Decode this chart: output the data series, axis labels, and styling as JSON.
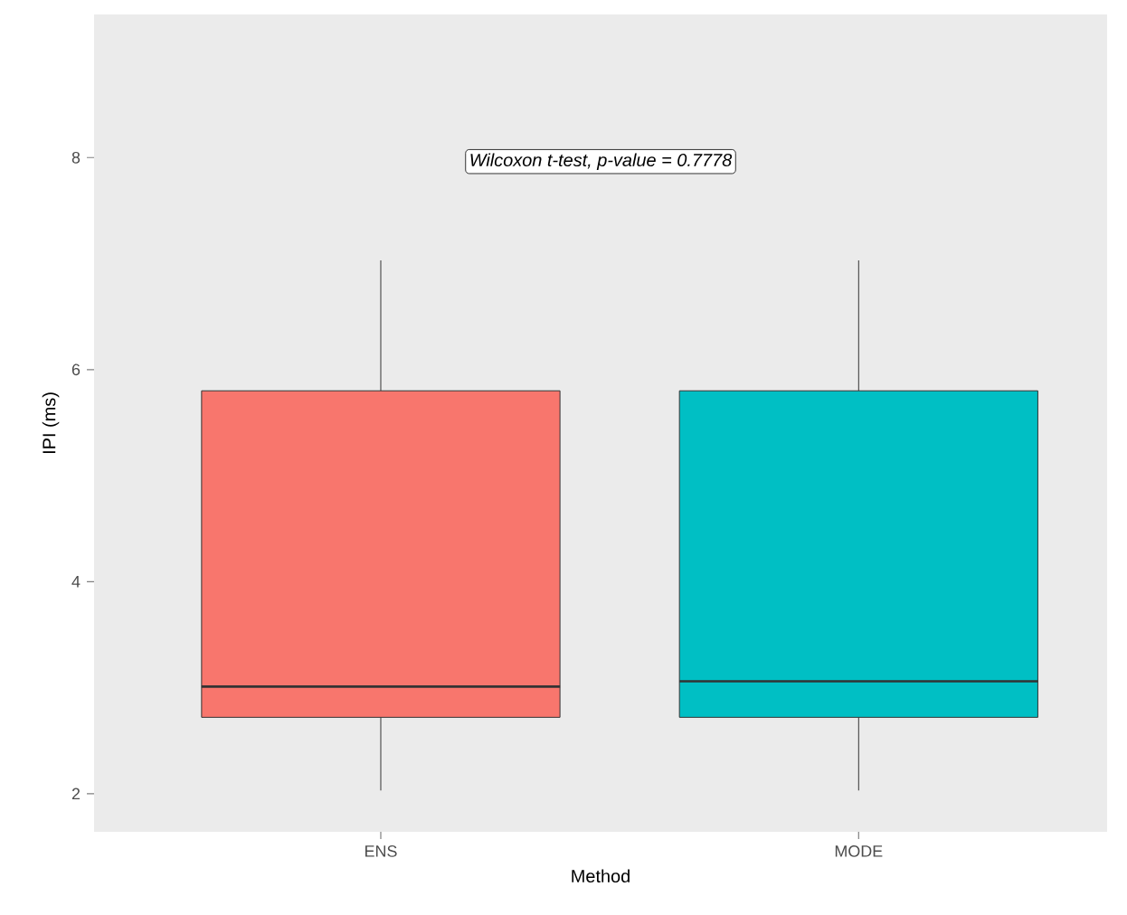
{
  "chart_data": {
    "type": "box",
    "xlabel": "Method",
    "ylabel": "IPI (ms)",
    "categories": [
      "ENS",
      "MODE"
    ],
    "colors": [
      "#f8766d",
      "#00bfc4"
    ],
    "boxes": [
      {
        "low": 2.03,
        "q1": 2.72,
        "median": 3.01,
        "q3": 5.8,
        "high": 7.03
      },
      {
        "low": 2.03,
        "q1": 2.72,
        "median": 3.06,
        "q3": 5.8,
        "high": 7.03
      }
    ],
    "ylim": [
      1.64,
      9.35
    ],
    "yticks": [
      2,
      4,
      6,
      8
    ],
    "grid": false,
    "annotations": [
      "*Wilcoxon t-test, p-value = 0.7778*"
    ]
  }
}
